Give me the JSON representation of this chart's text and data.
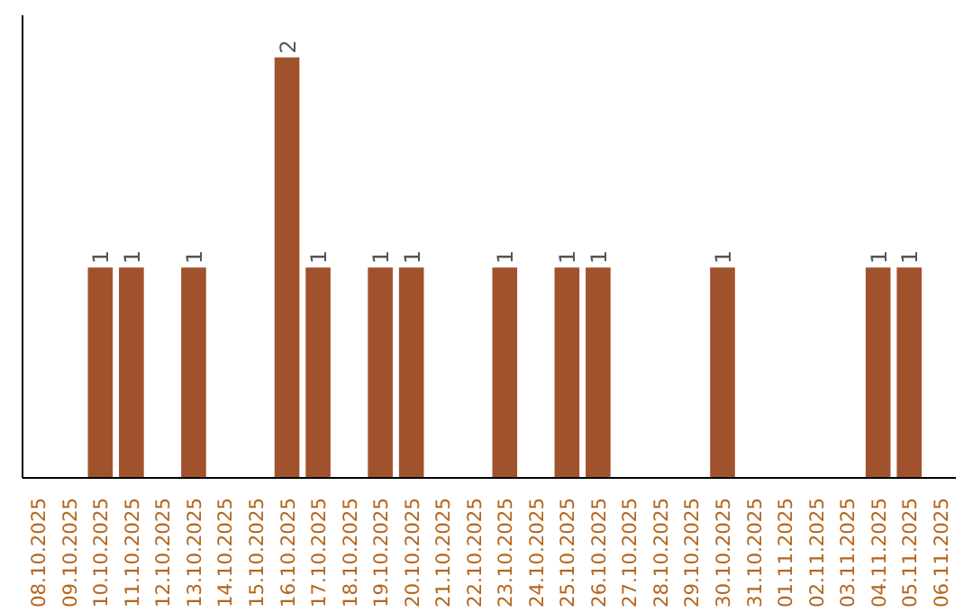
{
  "chart_data": {
    "type": "bar",
    "categories": [
      "08.10.2025",
      "09.10.2025",
      "10.10.2025",
      "11.10.2025",
      "12.10.2025",
      "13.10.2025",
      "14.10.2025",
      "15.10.2025",
      "16.10.2025",
      "17.10.2025",
      "18.10.2025",
      "19.10.2025",
      "20.10.2025",
      "21.10.2025",
      "22.10.2025",
      "23.10.2025",
      "24.10.2025",
      "25.10.2025",
      "26.10.2025",
      "27.10.2025",
      "28.10.2025",
      "29.10.2025",
      "30.10.2025",
      "31.10.2025",
      "01.11.2025",
      "02.11.2025",
      "03.11.2025",
      "04.11.2025",
      "05.11.2025",
      "06.11.2025"
    ],
    "values": [
      0,
      0,
      1,
      1,
      0,
      1,
      0,
      0,
      2,
      1,
      0,
      1,
      1,
      0,
      0,
      1,
      0,
      1,
      1,
      0,
      0,
      0,
      1,
      0,
      0,
      0,
      0,
      1,
      1,
      0
    ],
    "color": "#a0522d",
    "ylim": [
      0,
      2.2
    ],
    "value_labels": [
      null,
      null,
      "1",
      "1",
      null,
      "1",
      null,
      null,
      "2",
      "1",
      null,
      "1",
      "1",
      null,
      null,
      "1",
      null,
      "1",
      "1",
      null,
      null,
      null,
      "1",
      null,
      null,
      null,
      null,
      "1",
      "1",
      null
    ],
    "tick_labels": "x"
  }
}
